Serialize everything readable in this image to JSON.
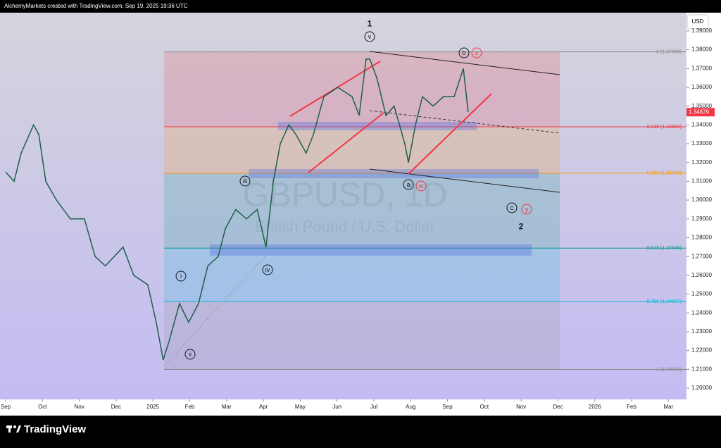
{
  "header": "AlchemyMarkets created with TradingView.com, Sep 19, 2025 19:36 UTC",
  "footer": "TradingView",
  "chart_data": {
    "type": "line",
    "title": "GBPUSD, 1D",
    "subtitle": "British Pound / U.S. Dollar",
    "currency": "USD",
    "color": "#1f5e4a",
    "x": [
      0,
      0.23,
      0.42,
      0.76,
      0.9,
      1.09,
      1.38,
      1.76,
      2.14,
      2.43,
      2.71,
      3.19,
      3.48,
      3.86,
      4.09,
      4.28,
      4.44,
      4.72,
      4.97,
      5.24,
      5.49,
      5.77,
      5.97,
      6.25,
      6.54,
      6.83,
      7.07,
      7.27,
      7.46,
      7.69,
      7.88,
      8.16,
      8.36,
      8.64,
      9.02,
      9.41,
      9.6,
      9.79,
      9.89,
      10.08,
      10.33,
      10.55,
      10.84,
      10.94,
      11.13,
      11.32,
      11.61,
      11.89,
      12.18,
      12.43,
      12.56
    ],
    "values": [
      1.315,
      1.31,
      1.325,
      1.34,
      1.335,
      1.31,
      1.3,
      1.29,
      1.29,
      1.27,
      1.265,
      1.275,
      1.26,
      1.255,
      1.235,
      1.215,
      1.225,
      1.245,
      1.235,
      1.245,
      1.265,
      1.27,
      1.285,
      1.295,
      1.29,
      1.295,
      1.275,
      1.31,
      1.33,
      1.34,
      1.335,
      1.325,
      1.335,
      1.355,
      1.36,
      1.355,
      1.345,
      1.375,
      1.375,
      1.365,
      1.345,
      1.35,
      1.33,
      1.32,
      1.34,
      1.355,
      1.35,
      1.355,
      1.355,
      1.37,
      1.34679
    ],
    "last_price": 1.34679,
    "xlim": [
      -0.153,
      18.49
    ],
    "xticks": [
      {
        "value": 0,
        "label": "Sep"
      },
      {
        "value": 1,
        "label": "Oct"
      },
      {
        "value": 2,
        "label": "Nov"
      },
      {
        "value": 3,
        "label": "Dec"
      },
      {
        "value": 4,
        "label": "2025"
      },
      {
        "value": 5,
        "label": "Feb"
      },
      {
        "value": 6,
        "label": "Mar"
      },
      {
        "value": 7,
        "label": "Apr"
      },
      {
        "value": 8,
        "label": "May"
      },
      {
        "value": 9,
        "label": "Jun"
      },
      {
        "value": 10,
        "label": "Jul"
      },
      {
        "value": 11,
        "label": "Aug"
      },
      {
        "value": 12,
        "label": "Sep"
      },
      {
        "value": 13,
        "label": "Oct"
      },
      {
        "value": 14,
        "label": "Nov"
      },
      {
        "value": 15,
        "label": "Dec"
      },
      {
        "value": 16,
        "label": "2026"
      },
      {
        "value": 17,
        "label": "Feb"
      },
      {
        "value": 18,
        "label": "Mar"
      }
    ],
    "ylim": [
      1.194,
      1.3997
    ],
    "yticks": [
      {
        "value": 1.2,
        "label": "1.20000"
      },
      {
        "value": 1.21,
        "label": "1.21000"
      },
      {
        "value": 1.22,
        "label": "1.22000"
      },
      {
        "value": 1.23,
        "label": "1.23000"
      },
      {
        "value": 1.24,
        "label": "1.24000"
      },
      {
        "value": 1.25,
        "label": "1.25000"
      },
      {
        "value": 1.26,
        "label": "1.26000"
      },
      {
        "value": 1.27,
        "label": "1.27000"
      },
      {
        "value": 1.28,
        "label": "1.28000"
      },
      {
        "value": 1.29,
        "label": "1.29000"
      },
      {
        "value": 1.3,
        "label": "1.30000"
      },
      {
        "value": 1.31,
        "label": "1.31000"
      },
      {
        "value": 1.32,
        "label": "1.32000"
      },
      {
        "value": 1.33,
        "label": "1.33000"
      },
      {
        "value": 1.34,
        "label": "1.34000"
      },
      {
        "value": 1.35,
        "label": "1.35000"
      },
      {
        "value": 1.36,
        "label": "1.36000"
      },
      {
        "value": 1.37,
        "label": "1.37000"
      },
      {
        "value": 1.38,
        "label": "1.38000"
      },
      {
        "value": 1.39,
        "label": "1.39000"
      }
    ],
    "fib_levels": [
      {
        "value": 1.37886,
        "label": "0 (1.37886)",
        "color": "#8a8a8a"
      },
      {
        "value": 1.33899,
        "label": "0.236 (1.33899)",
        "color": "#f23645"
      },
      {
        "value": 1.31433,
        "label": "0.382 (1.31433)",
        "color": "#ff9800"
      },
      {
        "value": 1.27445,
        "label": "0.618 (1.27445)",
        "color": "#089981"
      },
      {
        "value": 1.24607,
        "label": "0.786 (1.24607)",
        "color": "#00bcd4"
      },
      {
        "value": 1.20991,
        "label": "1 (1.20991)",
        "color": "#8a8a8a"
      }
    ],
    "wave_labels": [
      "1",
      "v",
      "b",
      "x",
      "iii",
      "a",
      "w",
      "c",
      "y",
      "2",
      "i",
      "iv",
      "ii"
    ]
  }
}
